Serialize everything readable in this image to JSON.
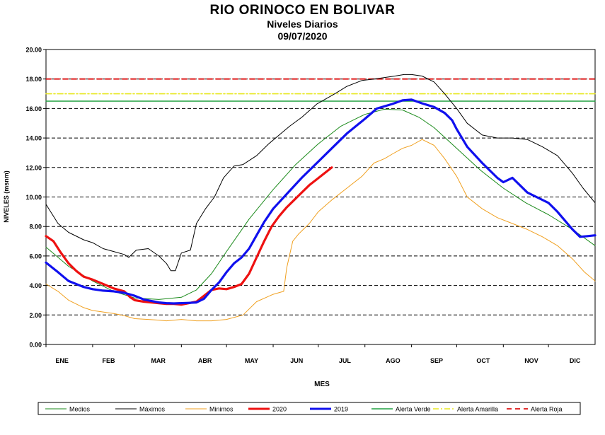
{
  "chart_data": {
    "type": "line",
    "title": "RIO ORINOCO  EN BOLIVAR",
    "subtitle": "Niveles Diarios",
    "date": "09/07/2020",
    "xlabel": "MES",
    "ylabel": "NIVELES (msnm)",
    "ylim": [
      0,
      20
    ],
    "xlim": [
      0,
      365
    ],
    "yticks": [
      "0.00",
      "2.00",
      "4.00",
      "6.00",
      "8.00",
      "10.00",
      "12.00",
      "14.00",
      "16.00",
      "18.00",
      "20.00"
    ],
    "ytick_values": [
      0,
      2,
      4,
      6,
      8,
      10,
      12,
      14,
      16,
      18,
      20
    ],
    "months": [
      "ENE",
      "FEB",
      "MAR",
      "ABR",
      "MAY",
      "JUN",
      "JUL",
      "AGO",
      "SEP",
      "OCT",
      "NOV",
      "DIC"
    ],
    "month_centers": [
      5,
      36,
      69,
      100,
      131,
      161,
      193,
      225,
      254,
      285,
      317,
      346
    ],
    "month_starts": [
      0,
      31,
      59,
      90,
      120,
      151,
      181,
      212,
      243,
      273,
      304,
      334
    ],
    "grid": "horizontal-dashed",
    "legend_position": "bottom",
    "series": [
      {
        "name": "Medios",
        "color": "#1a8a1a",
        "width": 1,
        "dash": "",
        "x": [
          0,
          15,
          31,
          45,
          59,
          75,
          90,
          100,
          110,
          120,
          135,
          151,
          166,
          181,
          196,
          212,
          225,
          237,
          248,
          258,
          273,
          289,
          304,
          319,
          334,
          350,
          365
        ],
        "y": [
          6.6,
          5.3,
          4.3,
          3.6,
          3.15,
          3.05,
          3.2,
          3.7,
          4.8,
          6.3,
          8.5,
          10.5,
          12.2,
          13.6,
          14.8,
          15.6,
          15.95,
          15.9,
          15.4,
          14.7,
          13.3,
          11.8,
          10.6,
          9.6,
          8.8,
          7.8,
          6.7
        ]
      },
      {
        "name": "Máximos",
        "color": "#000000",
        "width": 1,
        "dash": "",
        "x": [
          0,
          8,
          15,
          25,
          31,
          38,
          45,
          52,
          55,
          60,
          68,
          75,
          80,
          83,
          86,
          90,
          96,
          100,
          106,
          112,
          118,
          125,
          131,
          140,
          148,
          155,
          162,
          170,
          180,
          192,
          200,
          210,
          218,
          225,
          232,
          238,
          243,
          250,
          258,
          265,
          273,
          280,
          290,
          300,
          310,
          320,
          330,
          340,
          350,
          357,
          365
        ],
        "y": [
          9.5,
          8.2,
          7.6,
          7.1,
          6.9,
          6.5,
          6.3,
          6.1,
          5.9,
          6.4,
          6.5,
          6.0,
          5.5,
          5.0,
          5.0,
          6.2,
          6.4,
          8.2,
          9.2,
          10.0,
          11.3,
          12.1,
          12.2,
          12.8,
          13.6,
          14.2,
          14.8,
          15.4,
          16.3,
          17.0,
          17.5,
          17.9,
          18.0,
          18.1,
          18.2,
          18.3,
          18.3,
          18.2,
          17.8,
          17.0,
          16.0,
          15.0,
          14.2,
          14.0,
          14.0,
          13.9,
          13.4,
          12.8,
          11.6,
          10.6,
          9.6
        ]
      },
      {
        "name": "Minimos",
        "color": "#f0a020",
        "width": 1,
        "dash": "",
        "x": [
          0,
          8,
          15,
          25,
          31,
          38,
          45,
          52,
          59,
          68,
          75,
          80,
          90,
          100,
          110,
          120,
          131,
          140,
          151,
          158,
          160,
          164,
          168,
          175,
          181,
          190,
          200,
          210,
          218,
          225,
          230,
          237,
          243,
          250,
          258,
          265,
          273,
          280,
          290,
          300,
          310,
          320,
          330,
          340,
          350,
          358,
          365
        ],
        "y": [
          4.1,
          3.6,
          3.0,
          2.5,
          2.3,
          2.2,
          2.1,
          1.95,
          1.75,
          1.7,
          1.65,
          1.6,
          1.7,
          1.6,
          1.6,
          1.7,
          2.0,
          2.9,
          3.4,
          3.6,
          5.2,
          7.0,
          7.5,
          8.2,
          9.0,
          9.8,
          10.6,
          11.4,
          12.3,
          12.6,
          12.9,
          13.3,
          13.5,
          13.9,
          13.5,
          12.6,
          11.4,
          10.0,
          9.2,
          8.6,
          8.2,
          7.8,
          7.3,
          6.7,
          5.8,
          4.9,
          4.3
        ]
      },
      {
        "name": "2020",
        "color": "#ee1111",
        "width": 3.2,
        "dash": "",
        "x": [
          0,
          5,
          10,
          15,
          20,
          25,
          31,
          38,
          45,
          52,
          56,
          59,
          65,
          75,
          80,
          85,
          90,
          95,
          100,
          105,
          110,
          115,
          120,
          125,
          130,
          135,
          140,
          145,
          150,
          155,
          160,
          165,
          170,
          175,
          180,
          185,
          190
        ],
        "y": [
          7.35,
          7.0,
          6.2,
          5.5,
          5.0,
          4.6,
          4.4,
          4.1,
          3.8,
          3.6,
          3.2,
          3.0,
          2.9,
          2.8,
          2.75,
          2.75,
          2.7,
          2.8,
          2.9,
          3.3,
          3.7,
          3.8,
          3.75,
          3.9,
          4.1,
          4.8,
          5.9,
          7.0,
          8.0,
          8.7,
          9.3,
          9.8,
          10.3,
          10.8,
          11.2,
          11.6,
          12.0
        ]
      },
      {
        "name": "2019",
        "color": "#1010ee",
        "width": 3.2,
        "dash": "",
        "x": [
          0,
          8,
          15,
          25,
          31,
          38,
          45,
          52,
          59,
          65,
          75,
          80,
          85,
          90,
          95,
          100,
          105,
          110,
          115,
          120,
          125,
          130,
          135,
          140,
          145,
          151,
          160,
          170,
          181,
          190,
          200,
          212,
          220,
          230,
          237,
          243,
          250,
          258,
          265,
          270,
          273,
          280,
          290,
          300,
          304,
          310,
          320,
          334,
          340,
          350,
          355,
          360,
          365
        ],
        "y": [
          5.55,
          4.9,
          4.3,
          3.9,
          3.75,
          3.65,
          3.6,
          3.5,
          3.3,
          3.05,
          2.85,
          2.8,
          2.78,
          2.8,
          2.82,
          2.85,
          3.1,
          3.7,
          4.2,
          4.9,
          5.5,
          5.9,
          6.5,
          7.4,
          8.3,
          9.2,
          10.2,
          11.3,
          12.4,
          13.3,
          14.3,
          15.3,
          16.0,
          16.3,
          16.55,
          16.6,
          16.35,
          16.1,
          15.7,
          15.2,
          14.6,
          13.4,
          12.3,
          11.3,
          11.0,
          11.3,
          10.3,
          9.6,
          9.0,
          7.8,
          7.3,
          7.35,
          7.4
        ]
      },
      {
        "name": "Alerta Verde",
        "color": "#20a040",
        "width": 1.6,
        "dash": "",
        "x": [
          0,
          365
        ],
        "y": [
          16.5,
          16.5
        ]
      },
      {
        "name": "Alerta Amarilla",
        "color": "#e8e820",
        "width": 1.6,
        "dash": "8,3,2,3",
        "x": [
          0,
          365
        ],
        "y": [
          17.0,
          17.0
        ]
      },
      {
        "name": "Alerta Roja",
        "color": "#dd1111",
        "width": 1.8,
        "dash": "7,5",
        "x": [
          0,
          365
        ],
        "y": [
          18.0,
          18.0
        ]
      }
    ]
  }
}
